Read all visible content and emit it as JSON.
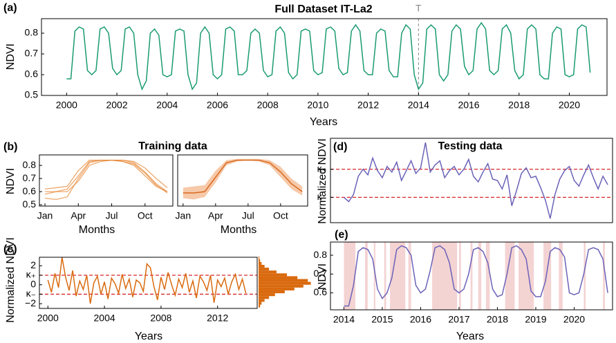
{
  "chart_data": [
    {
      "type": "line",
      "panel": "(a)",
      "title": "Full Dataset IT-La2",
      "xlabel": "Years",
      "ylabel": "NDVI",
      "color": "#1a9a72",
      "x": [
        2000,
        2000.17,
        2000.33,
        2000.5,
        2000.67,
        2000.83,
        2001,
        2001.17,
        2001.33,
        2001.5,
        2001.67,
        2001.83,
        2002,
        2002.17,
        2002.33,
        2002.5,
        2002.67,
        2002.83,
        2003,
        2003.17,
        2003.33,
        2003.5,
        2003.67,
        2003.83,
        2004,
        2004.17,
        2004.33,
        2004.5,
        2004.67,
        2004.83,
        2005,
        2005.17,
        2005.33,
        2005.5,
        2005.67,
        2005.83,
        2006,
        2006.17,
        2006.33,
        2006.5,
        2006.67,
        2006.83,
        2007,
        2007.17,
        2007.33,
        2007.5,
        2007.67,
        2007.83,
        2008,
        2008.17,
        2008.33,
        2008.5,
        2008.67,
        2008.83,
        2009,
        2009.17,
        2009.33,
        2009.5,
        2009.67,
        2009.83,
        2010,
        2010.17,
        2010.33,
        2010.5,
        2010.67,
        2010.83,
        2011,
        2011.17,
        2011.33,
        2011.5,
        2011.67,
        2011.83,
        2012,
        2012.17,
        2012.33,
        2012.5,
        2012.67,
        2012.83,
        2013,
        2013.17,
        2013.33,
        2013.5,
        2013.67,
        2013.83,
        2014,
        2014.17,
        2014.33,
        2014.5,
        2014.67,
        2014.83,
        2015,
        2015.17,
        2015.33,
        2015.5,
        2015.67,
        2015.83,
        2016,
        2016.17,
        2016.33,
        2016.5,
        2016.67,
        2016.83,
        2017,
        2017.17,
        2017.33,
        2017.5,
        2017.67,
        2017.83,
        2018,
        2018.17,
        2018.33,
        2018.5,
        2018.67,
        2018.83,
        2019,
        2019.17,
        2019.33,
        2019.5,
        2019.67,
        2019.83,
        2020,
        2020.17,
        2020.33,
        2020.5,
        2020.67,
        2020.83
      ],
      "values": [
        0.58,
        0.58,
        0.81,
        0.83,
        0.82,
        0.62,
        0.6,
        0.62,
        0.82,
        0.83,
        0.8,
        0.63,
        0.6,
        0.62,
        0.82,
        0.83,
        0.8,
        0.6,
        0.53,
        0.57,
        0.8,
        0.82,
        0.79,
        0.6,
        0.59,
        0.6,
        0.81,
        0.82,
        0.81,
        0.6,
        0.53,
        0.56,
        0.8,
        0.83,
        0.8,
        0.6,
        0.58,
        0.6,
        0.82,
        0.83,
        0.81,
        0.6,
        0.6,
        0.62,
        0.8,
        0.82,
        0.8,
        0.62,
        0.59,
        0.6,
        0.81,
        0.83,
        0.8,
        0.61,
        0.58,
        0.6,
        0.81,
        0.82,
        0.81,
        0.62,
        0.6,
        0.61,
        0.82,
        0.83,
        0.81,
        0.63,
        0.6,
        0.61,
        0.81,
        0.84,
        0.81,
        0.62,
        0.6,
        0.6,
        0.8,
        0.82,
        0.81,
        0.62,
        0.59,
        0.59,
        0.8,
        0.84,
        0.82,
        0.6,
        0.53,
        0.56,
        0.82,
        0.84,
        0.82,
        0.6,
        0.57,
        0.6,
        0.81,
        0.84,
        0.82,
        0.64,
        0.6,
        0.62,
        0.82,
        0.85,
        0.82,
        0.62,
        0.6,
        0.62,
        0.82,
        0.84,
        0.8,
        0.62,
        0.58,
        0.6,
        0.82,
        0.84,
        0.82,
        0.6,
        0.58,
        0.58,
        0.8,
        0.83,
        0.82,
        0.6,
        0.59,
        0.6,
        0.82,
        0.84,
        0.83,
        0.61
      ],
      "xlim": [
        1999,
        2021.5
      ],
      "ylim": [
        0.5,
        0.87
      ],
      "xticks": [
        2000,
        2002,
        2004,
        2006,
        2008,
        2010,
        2012,
        2014,
        2016,
        2018,
        2020
      ],
      "yticks": [
        0.5,
        0.6,
        0.7,
        0.8
      ],
      "split": {
        "x": 2014,
        "label": "T"
      }
    },
    {
      "type": "line",
      "panel": "(b)",
      "title": "Training data",
      "xlabel": "Months",
      "ylabel": "NDVI",
      "x": [
        1,
        2,
        3,
        4,
        5,
        6,
        7,
        8,
        9,
        10,
        11,
        12
      ],
      "series": [
        {
          "color": "#e8893a",
          "values": [
            0.6,
            0.6,
            0.62,
            0.72,
            0.83,
            0.84,
            0.84,
            0.84,
            0.82,
            0.75,
            0.66,
            0.6
          ]
        },
        {
          "color": "#e8893a",
          "values": [
            0.55,
            0.54,
            0.56,
            0.7,
            0.82,
            0.84,
            0.84,
            0.83,
            0.8,
            0.72,
            0.64,
            0.6
          ]
        },
        {
          "color": "#e8893a",
          "values": [
            0.62,
            0.63,
            0.64,
            0.76,
            0.84,
            0.84,
            0.84,
            0.84,
            0.83,
            0.78,
            0.7,
            0.63
          ]
        },
        {
          "color": "#e8893a",
          "values": [
            0.58,
            0.6,
            0.6,
            0.68,
            0.8,
            0.83,
            0.84,
            0.83,
            0.81,
            0.74,
            0.65,
            0.59
          ]
        }
      ],
      "xlim": [
        0.5,
        12.5
      ],
      "ylim": [
        0.49,
        0.88
      ],
      "xticks": [
        {
          "value": 1,
          "label": "Jan"
        },
        {
          "value": 4,
          "label": "Apr"
        },
        {
          "value": 7,
          "label": "Jul"
        },
        {
          "value": 10,
          "label": "Oct"
        }
      ],
      "yticks": [
        0.5,
        0.6,
        0.7,
        0.8
      ]
    },
    {
      "type": "line",
      "xlabel": "Months",
      "color": "#d9691f",
      "band_color": "#f6c9a9",
      "x": [
        1,
        2,
        3,
        4,
        5,
        6,
        7,
        8,
        9,
        10,
        11,
        12
      ],
      "values": [
        0.59,
        0.59,
        0.6,
        0.71,
        0.82,
        0.84,
        0.84,
        0.84,
        0.82,
        0.75,
        0.66,
        0.6
      ],
      "lower": [
        0.55,
        0.54,
        0.56,
        0.67,
        0.8,
        0.83,
        0.84,
        0.83,
        0.8,
        0.71,
        0.62,
        0.57
      ],
      "upper": [
        0.63,
        0.64,
        0.65,
        0.76,
        0.84,
        0.85,
        0.85,
        0.85,
        0.84,
        0.79,
        0.7,
        0.64
      ],
      "xlim": [
        0.5,
        12.5
      ],
      "ylim": [
        0.49,
        0.88
      ],
      "xticks": [
        {
          "value": 1,
          "label": "Jan"
        },
        {
          "value": 4,
          "label": "Apr"
        },
        {
          "value": 7,
          "label": "Jul"
        },
        {
          "value": 10,
          "label": "Oct"
        }
      ]
    },
    {
      "type": "line",
      "panel": "(c)",
      "xlabel": "Years",
      "ylabel": "Normalized NDVI",
      "color": "#d96a0f",
      "x": [
        2000,
        2000.25,
        2000.5,
        2000.75,
        2001,
        2001.25,
        2001.5,
        2001.75,
        2002,
        2002.25,
        2002.5,
        2002.75,
        2003,
        2003.25,
        2003.5,
        2003.75,
        2004,
        2004.25,
        2004.5,
        2004.75,
        2005,
        2005.25,
        2005.5,
        2005.75,
        2006,
        2006.25,
        2006.5,
        2006.75,
        2007,
        2007.25,
        2007.5,
        2007.75,
        2008,
        2008.25,
        2008.5,
        2008.75,
        2009,
        2009.25,
        2009.5,
        2009.75,
        2010,
        2010.25,
        2010.5,
        2010.75,
        2011,
        2011.25,
        2011.5,
        2011.75,
        2012,
        2012.25,
        2012.5,
        2012.75,
        2013,
        2013.25,
        2013.5,
        2013.75,
        2014
      ],
      "values": [
        0.5,
        -0.8,
        1.2,
        -0.3,
        2.9,
        0.8,
        -0.6,
        1.5,
        -1.2,
        0.4,
        -0.5,
        1.0,
        -2.0,
        0.2,
        0.9,
        -1.0,
        0.3,
        -1.5,
        0.7,
        0.1,
        -0.9,
        1.1,
        -0.4,
        0.6,
        -1.3,
        0.5,
        0.2,
        -0.7,
        2.2,
        1.8,
        -0.2,
        -1.6,
        0.8,
        -0.5,
        1.3,
        0.0,
        -1.1,
        0.6,
        -0.3,
        1.2,
        -0.8,
        0.4,
        -1.4,
        0.9,
        0.3,
        -0.6,
        1.0,
        -1.9,
        0.5,
        -0.2,
        0.7,
        -1.0,
        0.3,
        1.1,
        -0.5,
        0.6,
        -0.9
      ],
      "xlim": [
        1999.4,
        2014.8
      ],
      "ylim": [
        -2.5,
        2.9
      ],
      "xticks": [
        2000,
        2004,
        2008,
        2012
      ],
      "yticks": [
        {
          "value": -2,
          "label": "−2"
        },
        {
          "value": -1,
          "label": "κ₋"
        },
        0,
        {
          "value": 1,
          "label": "κ₊"
        },
        2
      ],
      "dashed_lines": [
        1,
        -1
      ]
    },
    {
      "type": "histogram",
      "orientation": "horizontal",
      "color": "#d96a0f",
      "bins": [
        -2.4,
        -2.1,
        -1.8,
        -1.5,
        -1.2,
        -0.9,
        -0.6,
        -0.3,
        0,
        0.3,
        0.6,
        0.9,
        1.2,
        1.5,
        1.8,
        2.1,
        2.4,
        2.7,
        3.0
      ],
      "values": [
        2,
        4,
        8,
        14,
        22,
        35,
        48,
        60,
        70,
        66,
        52,
        38,
        24,
        14,
        8,
        4,
        2,
        1
      ],
      "xlim": [
        0,
        75
      ],
      "ylim": [
        -2.5,
        2.9
      ]
    },
    {
      "type": "line",
      "panel": "(d)",
      "title": "Testing data",
      "ylabel": "Normalized NDVI",
      "color": "#6a62b8",
      "x": [
        2014,
        2014.125,
        2014.25,
        2014.375,
        2014.5,
        2014.625,
        2014.75,
        2014.875,
        2015,
        2015.125,
        2015.25,
        2015.375,
        2015.5,
        2015.625,
        2015.75,
        2015.875,
        2016,
        2016.125,
        2016.25,
        2016.375,
        2016.5,
        2016.625,
        2016.75,
        2016.875,
        2017,
        2017.125,
        2017.25,
        2017.375,
        2017.5,
        2017.625,
        2017.75,
        2017.875,
        2018,
        2018.125,
        2018.25,
        2018.375,
        2018.5,
        2018.625,
        2018.75,
        2018.875,
        2019,
        2019.125,
        2019.25,
        2019.375,
        2019.5,
        2019.625,
        2019.75,
        2019.875,
        2020,
        2020.125,
        2020.25,
        2020.375,
        2020.5,
        2020.625,
        2020.75,
        2020.875
      ],
      "values": [
        -1.0,
        -1.3,
        -0.8,
        0.5,
        1.0,
        0.6,
        1.8,
        0.9,
        0.4,
        1.2,
        0.8,
        1.5,
        0.2,
        0.9,
        1.6,
        0.7,
        1.1,
        2.9,
        0.8,
        1.3,
        1.6,
        0.4,
        0.9,
        1.2,
        0.6,
        1.0,
        1.7,
        0.5,
        0.1,
        0.8,
        1.4,
        0.3,
        0.2,
        -0.4,
        0.6,
        -1.6,
        -0.5,
        0.7,
        1.1,
        0.4,
        0.5,
        -0.3,
        -1.2,
        -2.5,
        -0.8,
        0.3,
        0.9,
        1.2,
        0.2,
        -0.2,
        0.6,
        1.3,
        0.4,
        -0.4,
        0.5,
        -0.1
      ],
      "xlim": [
        2013.65,
        2021.0
      ],
      "ylim": [
        -2.8,
        3.2
      ],
      "yticks": [
        {
          "value": 1,
          "label": "κ₊"
        },
        {
          "value": -1,
          "label": "κ₋"
        }
      ],
      "dashed_lines": [
        1,
        -1
      ]
    },
    {
      "type": "line",
      "panel": "(e)",
      "xlabel": "Years",
      "ylabel": "NDVI",
      "color": "#6a62b8",
      "span_color": "#f0c4c4",
      "x": [
        2014,
        2014.125,
        2014.25,
        2014.375,
        2014.5,
        2014.625,
        2014.75,
        2014.875,
        2015,
        2015.125,
        2015.25,
        2015.375,
        2015.5,
        2015.625,
        2015.75,
        2015.875,
        2016,
        2016.125,
        2016.25,
        2016.375,
        2016.5,
        2016.625,
        2016.75,
        2016.875,
        2017,
        2017.125,
        2017.25,
        2017.375,
        2017.5,
        2017.625,
        2017.75,
        2017.875,
        2018,
        2018.125,
        2018.25,
        2018.375,
        2018.5,
        2018.625,
        2018.75,
        2018.875,
        2019,
        2019.125,
        2019.25,
        2019.375,
        2019.5,
        2019.625,
        2019.75,
        2019.875,
        2020,
        2020.125,
        2020.25,
        2020.375,
        2020.5,
        2020.625,
        2020.75,
        2020.875
      ],
      "values": [
        0.53,
        0.53,
        0.64,
        0.82,
        0.84,
        0.83,
        0.78,
        0.62,
        0.57,
        0.6,
        0.68,
        0.83,
        0.85,
        0.84,
        0.8,
        0.64,
        0.6,
        0.62,
        0.72,
        0.84,
        0.85,
        0.83,
        0.76,
        0.62,
        0.6,
        0.62,
        0.7,
        0.83,
        0.84,
        0.82,
        0.76,
        0.62,
        0.58,
        0.59,
        0.7,
        0.84,
        0.85,
        0.83,
        0.78,
        0.61,
        0.58,
        0.58,
        0.66,
        0.82,
        0.84,
        0.83,
        0.79,
        0.6,
        0.59,
        0.6,
        0.7,
        0.83,
        0.84,
        0.83,
        0.78,
        0.6
      ],
      "spans": [
        [
          2014.0,
          2014.3
        ],
        [
          2014.55,
          2014.62
        ],
        [
          2014.78,
          2014.82
        ],
        [
          2015.05,
          2015.1
        ],
        [
          2015.2,
          2015.6
        ],
        [
          2015.68,
          2015.75
        ],
        [
          2016.3,
          2016.95
        ],
        [
          2017.0,
          2017.05
        ],
        [
          2017.3,
          2017.35
        ],
        [
          2017.5,
          2017.58
        ],
        [
          2017.7,
          2017.8
        ],
        [
          2018.2,
          2018.45
        ],
        [
          2018.55,
          2018.95
        ],
        [
          2019.2,
          2019.4
        ],
        [
          2019.6,
          2019.7
        ],
        [
          2020.25,
          2020.3
        ],
        [
          2020.75,
          2020.8
        ]
      ],
      "xlim": [
        2013.65,
        2021.0
      ],
      "ylim": [
        0.51,
        0.87
      ],
      "xticks": [
        2014,
        2015,
        2016,
        2017,
        2018,
        2019,
        2020
      ],
      "yticks": [
        0.6,
        0.7,
        0.8
      ]
    }
  ]
}
